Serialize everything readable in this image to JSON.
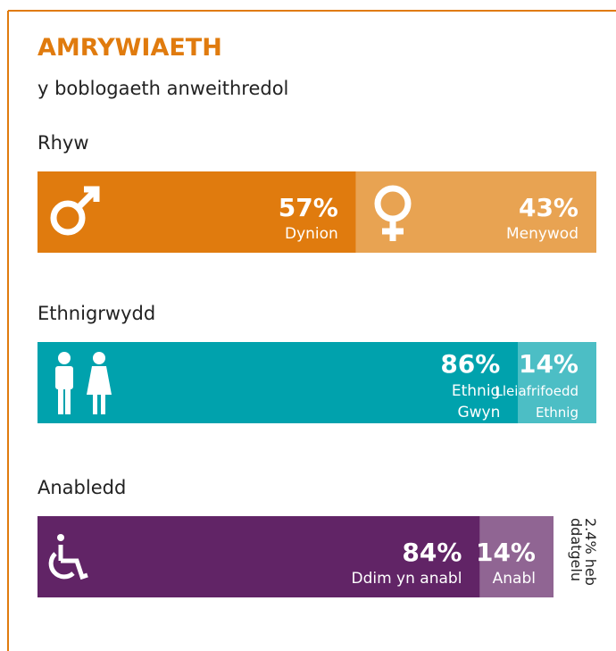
{
  "title": "AMRYWIAETH",
  "subtitle": "y boblogaeth anweithredol",
  "sections": [
    {
      "label": "Rhyw",
      "segments": [
        {
          "value": 57,
          "value_label": "57%",
          "name": [
            "Dynion"
          ],
          "color": "#e07b0e"
        },
        {
          "value": 43,
          "value_label": "43%",
          "name": [
            "Menywod"
          ],
          "color": "#e8a352"
        }
      ]
    },
    {
      "label": "Ethnigrwydd",
      "segments": [
        {
          "value": 86,
          "value_label": "86%",
          "name": [
            "Ethnig",
            "Gwyn"
          ],
          "color": "#00a2ad"
        },
        {
          "value": 14,
          "value_label": "14%",
          "name": [
            "Lleiafrifoedd",
            "Ethnig"
          ],
          "color": "#4cbec5"
        }
      ]
    },
    {
      "label": "Anabledd",
      "segments": [
        {
          "value": 84,
          "value_label": "84%",
          "name": [
            "Ddim yn anabl"
          ],
          "color": "#612466"
        },
        {
          "value": 14,
          "value_label": "14%",
          "name": [
            "Anabl"
          ],
          "color": "#906593"
        }
      ],
      "note": [
        "2.4% heb",
        "ddatgelu"
      ]
    }
  ]
}
